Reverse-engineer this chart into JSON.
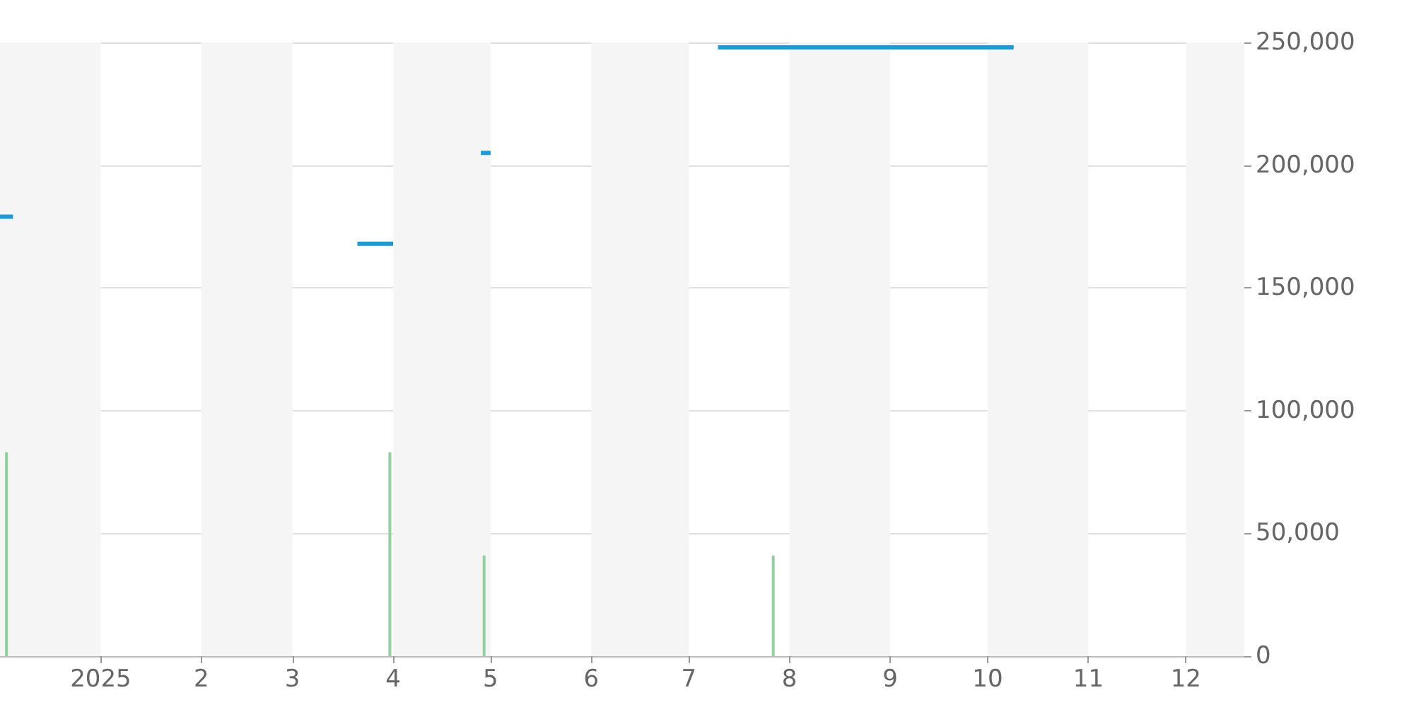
{
  "chart_data": {
    "type": "line",
    "xlim": [
      "2024-12-01",
      "2025-12-19"
    ],
    "xticks": [
      {
        "value": "2025-01-01",
        "label": "2025"
      },
      {
        "value": "2025-02-01",
        "label": "2"
      },
      {
        "value": "2025-03-01",
        "label": "3"
      },
      {
        "value": "2025-04-01",
        "label": "4"
      },
      {
        "value": "2025-05-01",
        "label": "5"
      },
      {
        "value": "2025-06-01",
        "label": "6"
      },
      {
        "value": "2025-07-01",
        "label": "7"
      },
      {
        "value": "2025-08-01",
        "label": "8"
      },
      {
        "value": "2025-09-01",
        "label": "9"
      },
      {
        "value": "2025-10-01",
        "label": "10"
      },
      {
        "value": "2025-11-01",
        "label": "11"
      },
      {
        "value": "2025-12-01",
        "label": "12"
      }
    ],
    "ylim": [
      0,
      250000
    ],
    "yticks": [
      0,
      {
        "value": 50000,
        "label": "50,000"
      },
      {
        "value": 100000,
        "label": "100,000"
      },
      {
        "value": 150000,
        "label": "150,000"
      },
      {
        "value": 200000,
        "label": "200,000"
      },
      {
        "value": 250000,
        "label": "250,000"
      }
    ],
    "grid": "y",
    "series": [
      {
        "color": "#1a9ad6",
        "x": [
          "2024-12-01",
          "2024-12-05",
          "2024-12-20",
          "2025-03-21",
          "2025-04-01",
          "2025-04-15",
          "2025-04-28",
          "2025-05-01",
          "2025-06-01",
          "2025-07-10",
          "2025-10-09"
        ],
        "values": [
          179000,
          179000,
          null,
          168000,
          168000,
          null,
          205000,
          205000,
          null,
          248000,
          248000
        ]
      },
      {
        "type": "bar",
        "color": "#8fd19e",
        "x": [
          "2024-12-03",
          "2025-03-31",
          "2025-04-29",
          "2025-07-27"
        ],
        "values": [
          83000,
          83000,
          41000,
          41000
        ]
      }
    ],
    "bands": [
      {
        "axis": "x",
        "from": "2024-12-01",
        "to": "2025-01-01",
        "color": "#f5f5f5"
      },
      {
        "axis": "x",
        "from": "2025-02-01",
        "to": "2025-03-01",
        "color": "#f5f5f5"
      },
      {
        "axis": "x",
        "from": "2025-04-01",
        "to": "2025-05-01",
        "color": "#f5f5f5"
      },
      {
        "axis": "x",
        "from": "2025-06-01",
        "to": "2025-07-01",
        "color": "#f5f5f5"
      },
      {
        "axis": "x",
        "from": "2025-08-01",
        "to": "2025-09-01",
        "color": "#f5f5f5"
      },
      {
        "axis": "x",
        "from": "2025-10-01",
        "to": "2025-11-01",
        "color": "#f5f5f5"
      },
      {
        "axis": "x",
        "from": "2025-12-01",
        "to": "2025-12-19",
        "color": "#f5f5f5"
      }
    ]
  }
}
